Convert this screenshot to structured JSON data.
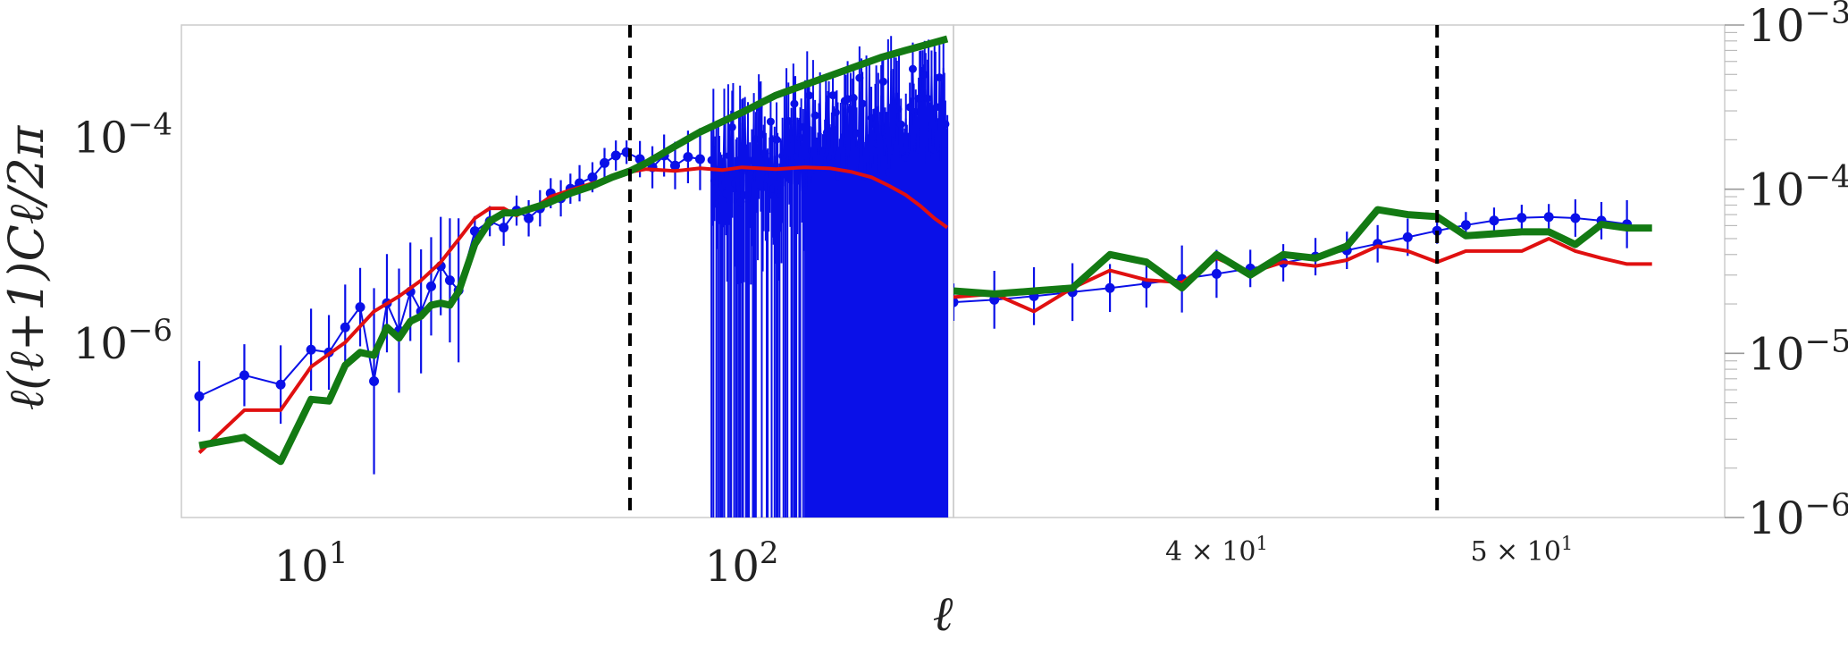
{
  "colors": {
    "data": "#0a10e8",
    "model_a": "#e01010",
    "model_b": "#137a13",
    "marker_line": "#000000",
    "frame": "#cccccc"
  },
  "chart_data": [
    {
      "type": "line",
      "panel": "left",
      "xscale": "log",
      "yscale": "log",
      "xlim": [
        5,
        310
      ],
      "ylim": [
        2e-08,
        0.0012
      ],
      "xlabel": "ℓ",
      "ylabel": "ℓ(ℓ+1)Cℓ/2π",
      "x_ticks": [
        {
          "value": 10,
          "label": "10",
          "sup": "1"
        },
        {
          "value": 100,
          "label": "10",
          "sup": "2"
        }
      ],
      "y_ticks": [
        {
          "value": 1e-06,
          "label": "10",
          "sup": "−6"
        },
        {
          "value": 0.0001,
          "label": "10",
          "sup": "−4"
        }
      ],
      "vlines": [
        55
      ],
      "series": [
        {
          "role": "data-with-errorbars",
          "x": [
            5.5,
            7,
            8.5,
            10,
            11,
            12,
            13,
            14,
            15,
            16,
            17,
            18,
            19,
            20,
            21,
            22,
            24,
            26,
            28,
            30,
            32,
            34,
            36,
            38,
            40,
            42,
            45,
            48,
            51,
            54,
            58,
            62,
            66,
            70,
            75,
            80
          ],
          "y": [
            3e-07,
            4.8e-07,
            3.9e-07,
            8.5e-07,
            8e-07,
            1.4e-06,
            2.2e-06,
            4.2e-07,
            2.4e-06,
            1.3e-06,
            3.1e-06,
            2e-06,
            3.5e-06,
            5.5e-06,
            4e-06,
            3.2e-06,
            1.2e-05,
            1.5e-05,
            1.3e-05,
            1.9e-05,
            1.6e-05,
            2e-05,
            2.8e-05,
            2.5e-05,
            3.1e-05,
            3.5e-05,
            4e-05,
            5.5e-05,
            6.5e-05,
            7e-05,
            6e-05,
            5e-05,
            6.5e-05,
            5.2e-05,
            6.3e-05,
            6e-05
          ],
          "yerr_factor": [
            2.2,
            2.0,
            2.4,
            2.5,
            2.3,
            2.6,
            2.4,
            8,
            3,
            4,
            3,
            4,
            3,
            3,
            4,
            5,
            1.4,
            1.4,
            1.5,
            1.4,
            1.5,
            1.5,
            1.4,
            1.5,
            1.4,
            1.5,
            1.4,
            1.4,
            1.4,
            1.3,
            1.5,
            1.6,
            1.6,
            1.7,
            1.8,
            2.0
          ],
          "note_high_l": "for ℓ ≈ 85–300 the data scatter strongly (≈1e-5 to 2.5e-4) with error bars extending below the plot floor"
        },
        {
          "role": "model-thin",
          "x": [
            5.5,
            7,
            8.5,
            10,
            12,
            14,
            16,
            18,
            20,
            22,
            24,
            26,
            28,
            30,
            32,
            34,
            36,
            40,
            45,
            50,
            55,
            60,
            70,
            80,
            90,
            100,
            120,
            140,
            160,
            180,
            200,
            220,
            240,
            260,
            280,
            300
          ],
          "y": [
            8.5e-08,
            2.2e-07,
            2.2e-07,
            5.8e-07,
            1e-06,
            2e-06,
            2.8e-06,
            4e-06,
            6e-06,
            1e-05,
            1.6e-05,
            2e-05,
            2e-05,
            1.7e-05,
            2e-05,
            2.2e-05,
            2.6e-05,
            3e-05,
            3.5e-05,
            4e-05,
            4.5e-05,
            4.8e-05,
            4.6e-05,
            4.9e-05,
            4.7e-05,
            5e-05,
            4.8e-05,
            5e-05,
            4.9e-05,
            4.5e-05,
            4e-05,
            3.3e-05,
            2.7e-05,
            2.1e-05,
            1.6e-05,
            1.3e-05
          ]
        },
        {
          "role": "model-thick",
          "x": [
            5.5,
            7,
            8.5,
            10,
            11,
            12,
            13,
            14,
            15,
            16,
            17,
            18,
            19,
            20,
            21,
            22,
            24,
            26,
            28,
            30,
            35,
            40,
            45,
            50,
            55,
            60,
            70,
            80,
            100,
            120,
            150,
            180,
            210,
            240,
            270,
            300
          ],
          "y": [
            1e-07,
            1.2e-07,
            7e-08,
            2.8e-07,
            2.7e-07,
            6e-07,
            8e-07,
            7.5e-07,
            1.4e-06,
            1.1e-06,
            1.6e-06,
            1.8e-06,
            2.3e-06,
            2.4e-06,
            2.3e-06,
            3.1e-06,
            9e-06,
            1.5e-05,
            1.8e-05,
            1.8e-05,
            2.2e-05,
            2.8e-05,
            3.3e-05,
            4e-05,
            4.6e-05,
            5.5e-05,
            8e-05,
            0.00011,
            0.00017,
            0.00025,
            0.00035,
            0.00046,
            0.00058,
            0.00068,
            0.00078,
            0.00088
          ]
        }
      ]
    },
    {
      "type": "line",
      "panel": "right",
      "xscale": "log",
      "yscale": "log",
      "xlim": [
        33,
        58
      ],
      "ylim": [
        1e-06,
        0.001
      ],
      "x_ticks": [
        {
          "value": 40,
          "label": "4 × 10",
          "sup": "1"
        },
        {
          "value": 50,
          "label": "5 × 10",
          "sup": "1"
        }
      ],
      "y_ticks": [
        {
          "value": 0.001,
          "label": "10",
          "sup": "−3"
        },
        {
          "value": 0.0001,
          "label": "10",
          "sup": "−4"
        },
        {
          "value": 1e-05,
          "label": "10",
          "sup": "−5"
        },
        {
          "value": 1e-06,
          "label": "10",
          "sup": "−6"
        }
      ],
      "vlines": [
        47
      ],
      "series": [
        {
          "role": "data-with-errorbars",
          "x": [
            33.0,
            34.0,
            35.0,
            36.0,
            37.0,
            38.0,
            39.0,
            40.0,
            41.0,
            42.0,
            43.0,
            44.0,
            45.0,
            46.0,
            47.0,
            48.0,
            49.0,
            50.0,
            51.0,
            52.0,
            53.0,
            54.0
          ],
          "y": [
            2.05e-05,
            2.12e-05,
            2.23e-05,
            2.36e-05,
            2.5e-05,
            2.66e-05,
            2.84e-05,
            3.05e-05,
            3.29e-05,
            3.56e-05,
            3.88e-05,
            4.24e-05,
            4.65e-05,
            5.1e-05,
            5.58e-05,
            6.05e-05,
            6.44e-05,
            6.7e-05,
            6.77e-05,
            6.67e-05,
            6.43e-05,
            6.12e-05
          ],
          "yerr_factor": [
            1.3,
            1.5,
            1.5,
            1.5,
            1.4,
            1.4,
            1.6,
            1.4,
            1.3,
            1.3,
            1.3,
            1.3,
            1.3,
            1.3,
            1.2,
            1.2,
            1.2,
            1.2,
            1.2,
            1.3,
            1.3,
            1.4
          ]
        },
        {
          "role": "model-thin",
          "x": [
            33,
            34,
            35,
            36,
            37,
            38,
            39,
            40,
            41,
            42,
            43,
            44,
            45,
            46,
            47,
            48,
            50,
            51,
            52,
            53,
            54,
            55
          ],
          "y": [
            2.2e-05,
            2.3e-05,
            1.8e-05,
            2.5e-05,
            3.2e-05,
            2.8e-05,
            2.7e-05,
            3.8e-05,
            3.1e-05,
            3.6e-05,
            3.4e-05,
            3.7e-05,
            4.5e-05,
            4.2e-05,
            3.6e-05,
            4.2e-05,
            4.2e-05,
            5e-05,
            4.2e-05,
            3.8e-05,
            3.5e-05,
            3.5e-05
          ]
        },
        {
          "role": "model-thick",
          "x": [
            33,
            34,
            35,
            36,
            37,
            38,
            39,
            40,
            41,
            42,
            43,
            44,
            45,
            46,
            47,
            48,
            50,
            51,
            52,
            53,
            54,
            55
          ],
          "y": [
            2.4e-05,
            2.3e-05,
            2.4e-05,
            2.5e-05,
            4e-05,
            3.6e-05,
            2.5e-05,
            4e-05,
            3e-05,
            4e-05,
            3.8e-05,
            4.5e-05,
            7.5e-05,
            7e-05,
            6.8e-05,
            5.2e-05,
            5.5e-05,
            5.5e-05,
            4.6e-05,
            6.1e-05,
            5.8e-05,
            5.8e-05
          ]
        }
      ]
    }
  ]
}
